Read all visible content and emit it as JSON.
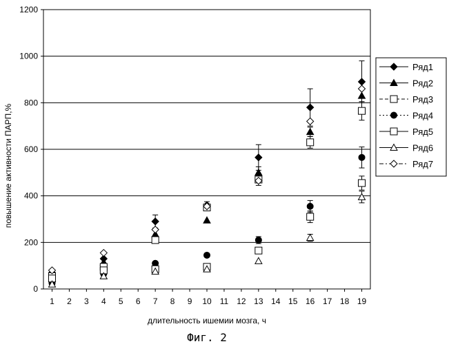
{
  "caption": "Фиг. 2",
  "chart_data": {
    "type": "scatter",
    "title": "",
    "xlabel": "длительность ишемии мозга, ч",
    "ylabel": "повышение активности ПАРП,%",
    "xlim": [
      0.5,
      19.5
    ],
    "ylim": [
      0,
      1200
    ],
    "x_ticks": [
      1,
      2,
      3,
      4,
      5,
      6,
      7,
      8,
      9,
      10,
      11,
      12,
      13,
      14,
      15,
      16,
      17,
      18,
      19
    ],
    "y_ticks": [
      0,
      200,
      400,
      600,
      800,
      1000,
      1200
    ],
    "y_tick_labels": [
      "0",
      "200",
      "400",
      "600",
      "800",
      "1000",
      "1200"
    ],
    "grid": "horizontal",
    "legend_position": "right",
    "series": [
      {
        "name": "Ряд1",
        "marker": "diamond-filled",
        "line": "solid",
        "x": [
          1,
          4,
          7,
          10,
          13,
          16,
          19
        ],
        "y": [
          70,
          130,
          290,
          360,
          565,
          780,
          890
        ],
        "err": [
          0,
          0,
          28,
          15,
          55,
          80,
          90
        ]
      },
      {
        "name": "Ряд2",
        "marker": "triangle-filled",
        "line": "solid",
        "x": [
          1,
          4,
          7,
          10,
          13,
          16,
          19
        ],
        "y": [
          45,
          115,
          235,
          295,
          500,
          675,
          830
        ],
        "err": [
          0,
          0,
          0,
          0,
          25,
          20,
          0
        ]
      },
      {
        "name": "Ряд3",
        "marker": "square-open",
        "line": "dash",
        "x": [
          1,
          4,
          7,
          10,
          13,
          16,
          19
        ],
        "y": [
          55,
          95,
          210,
          350,
          470,
          630,
          765
        ],
        "err": [
          0,
          0,
          0,
          0,
          0,
          25,
          40
        ]
      },
      {
        "name": "Ряд4",
        "marker": "circle-filled",
        "line": "dot",
        "x": [
          1,
          4,
          7,
          10,
          13,
          16,
          19
        ],
        "y": [
          25,
          65,
          110,
          145,
          210,
          355,
          565
        ],
        "err": [
          0,
          0,
          0,
          0,
          15,
          25,
          45
        ]
      },
      {
        "name": "Ряд5",
        "marker": "square-open",
        "line": "solid",
        "x": [
          1,
          4,
          7,
          10,
          13,
          16,
          19
        ],
        "y": [
          45,
          80,
          85,
          95,
          165,
          310,
          455
        ],
        "err": [
          0,
          0,
          0,
          0,
          0,
          25,
          30
        ]
      },
      {
        "name": "Ряд6",
        "marker": "triangle-open",
        "line": "solid",
        "x": [
          1,
          4,
          7,
          10,
          13,
          16,
          19
        ],
        "y": [
          20,
          55,
          75,
          85,
          120,
          220,
          395
        ],
        "err": [
          0,
          0,
          0,
          0,
          0,
          15,
          25
        ]
      },
      {
        "name": "Ряд7",
        "marker": "diamond-open",
        "line": "dashdot",
        "x": [
          1,
          4,
          7,
          10,
          13,
          16,
          19
        ],
        "y": [
          80,
          155,
          255,
          355,
          465,
          720,
          860
        ],
        "err": [
          0,
          0,
          0,
          0,
          20,
          0,
          0
        ]
      }
    ]
  }
}
